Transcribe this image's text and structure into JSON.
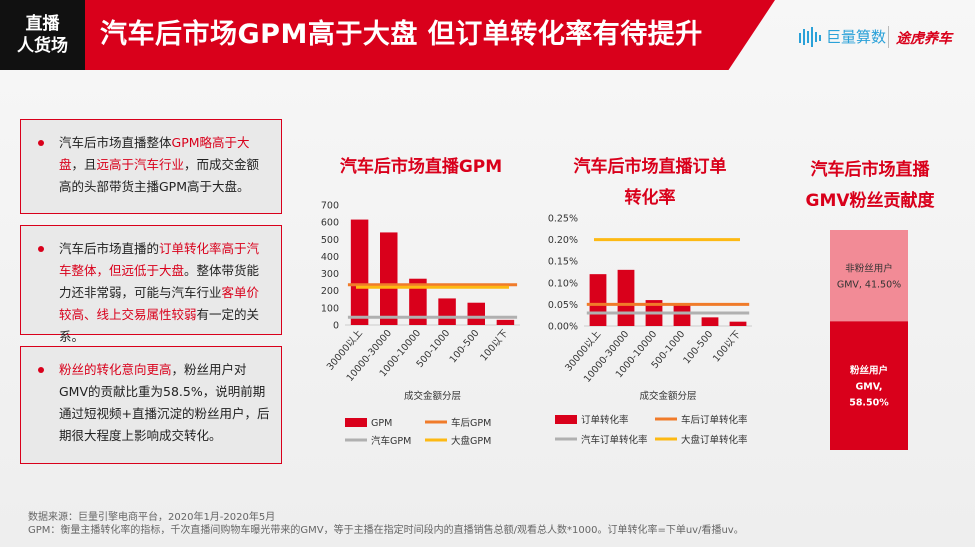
{
  "header": {
    "tag_line1": "直播",
    "tag_line2": "人货场",
    "title": "汽车后市场GPM高于大盘 但订单转化率有待提升",
    "logo1_text": "巨量算数",
    "logo2_text": "途虎养车"
  },
  "boxes": [
    {
      "p1": "汽车后市场直播整体",
      "h1": "GPM略高于大盘",
      "p2": "，且",
      "h2": "远高于汽车行业",
      "p3": "，而成交金额高的头部带货主播GPM高于大盘。"
    },
    {
      "p1": "汽车后市场直播的",
      "h1": "订单转化率高于汽车整体，但远低于大盘",
      "p2": "。整体带货能力还非常弱，可能与汽车行业",
      "h2": "客单价较高、线上交易属性较弱",
      "p3": "有一定的关系。"
    },
    {
      "p1": "",
      "h1": "粉丝的转化意向更高",
      "p2": "，粉丝用户对GMV的贡献比重为58.5%，说明前期通过短视频+直播沉淀的粉丝用户，后期很大程度上影响成交转化。",
      "h2": "",
      "p3": ""
    }
  ],
  "colors": {
    "red": "#d9001b",
    "orange": "#f07b2a",
    "gray": "#b0b0b0",
    "yellow": "#fdb913",
    "pink": "#f28b96"
  },
  "chart_data": [
    {
      "type": "bar",
      "title": "汽车后市场直播GPM",
      "categories": [
        "30000以上",
        "10000-30000",
        "1000-10000",
        "500-1000",
        "100-500",
        "100以下"
      ],
      "series": [
        {
          "name": "GPM",
          "values": [
            615,
            540,
            270,
            155,
            130,
            30
          ]
        }
      ],
      "reference_lines": [
        {
          "name": "车后GPM",
          "value": 235
        },
        {
          "name": "汽车GPM",
          "value": 45
        },
        {
          "name": "大盘GPM",
          "value": 220
        }
      ],
      "xlabel": "成交金额分层",
      "ylabel": "",
      "ylim": [
        0,
        700
      ],
      "yticks": [
        "0",
        "100",
        "200",
        "300",
        "400",
        "500",
        "600",
        "700"
      ],
      "ytick_values": [
        0,
        100,
        200,
        300,
        400,
        500,
        600,
        700
      ],
      "legend": [
        "GPM",
        "车后GPM",
        "汽车GPM",
        "大盘GPM"
      ]
    },
    {
      "type": "bar",
      "title_line1": "汽车后市场直播订单",
      "title_line2": "转化率",
      "categories": [
        "30000以上",
        "10000-30000",
        "1000-10000",
        "500-1000",
        "100-500",
        "100以下"
      ],
      "series": [
        {
          "name": "订单转化率",
          "values": [
            0.12,
            0.13,
            0.06,
            0.05,
            0.02,
            0.01
          ]
        }
      ],
      "reference_lines": [
        {
          "name": "车后订单转化率",
          "value": 0.05
        },
        {
          "name": "汽车订单转化率",
          "value": 0.03
        },
        {
          "name": "大盘订单转化率",
          "value": 0.2
        }
      ],
      "xlabel": "成交金额分层",
      "ylim": [
        0,
        0.25
      ],
      "yticks": [
        "0.00%",
        "0.05%",
        "0.10%",
        "0.15%",
        "0.20%",
        "0.25%"
      ],
      "ytick_values": [
        0,
        0.05,
        0.1,
        0.15,
        0.2,
        0.25
      ],
      "legend": [
        "订单转化率",
        "车后订单转化率",
        "汽车订单转化率",
        "大盘订单转化率"
      ]
    },
    {
      "type": "bar",
      "title_line1": "汽车后市场直播",
      "title_line2": "GMV粉丝贡献度",
      "stacked": true,
      "series": [
        {
          "name": "粉丝用户",
          "label_line1": "粉丝用户",
          "label_line2": "GMV,",
          "label_line3": "58.50%",
          "value": 58.5
        },
        {
          "name": "非粉丝用户",
          "label_line1": "非粉丝用户",
          "label_line2": "GMV, 41.50%",
          "value": 41.5
        }
      ]
    }
  ],
  "footer": {
    "line1": "数据来源：巨量引擎电商平台，2020年1月-2020年5月",
    "line2": "GPM：衡量主播转化率的指标，千次直播间购物车曝光带来的GMV，等于主播在指定时间段内的直播销售总额/观看总人数*1000。订单转化率=下单uv/看播uv。"
  }
}
